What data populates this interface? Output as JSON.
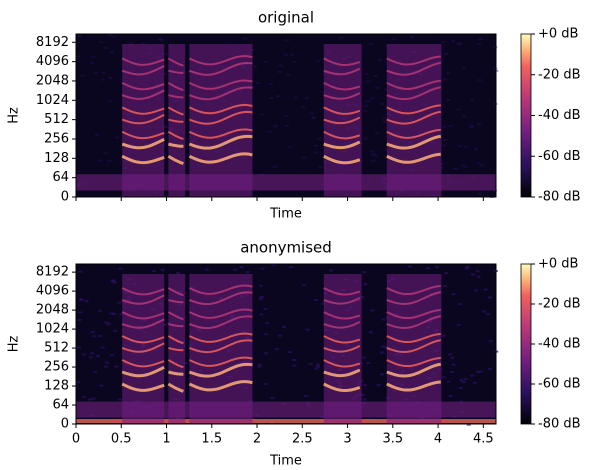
{
  "chart_data": [
    {
      "type": "heatmap",
      "title": "original",
      "xlabel": "Time",
      "ylabel": "Hz",
      "yscale": "symlog",
      "linthresh": 64,
      "xlim": [
        0,
        4.64
      ],
      "xticks": [
        0,
        0.5,
        1,
        1.5,
        2,
        2.5,
        3,
        3.5,
        4,
        4.5
      ],
      "xticklabels": false,
      "ylim": [
        0,
        11025
      ],
      "yticks": [
        0,
        64,
        128,
        256,
        512,
        1024,
        2048,
        4096,
        8192
      ],
      "clim": [
        -80,
        0
      ],
      "cticks": [
        {
          "value": 0,
          "label": "+0 dB"
        },
        {
          "value": -20,
          "label": "-20 dB"
        },
        {
          "value": -40,
          "label": "-40 dB"
        },
        {
          "value": -60,
          "label": "-60 dB"
        },
        {
          "value": -80,
          "label": "-80 dB"
        }
      ]
    },
    {
      "type": "heatmap",
      "title": "anonymised",
      "xlabel": "Time",
      "ylabel": "Hz",
      "yscale": "symlog",
      "linthresh": 64,
      "xlim": [
        0,
        4.64
      ],
      "xticks": [
        0,
        0.5,
        1,
        1.5,
        2,
        2.5,
        3,
        3.5,
        4,
        4.5
      ],
      "xticklabels": true,
      "ylim": [
        0,
        11025
      ],
      "yticks": [
        0,
        64,
        128,
        256,
        512,
        1024,
        2048,
        4096,
        8192
      ],
      "clim": [
        -80,
        0
      ],
      "cticks": [
        {
          "value": 0,
          "label": "+0 dB"
        },
        {
          "value": -20,
          "label": "-20 dB"
        },
        {
          "value": -40,
          "label": "-40 dB"
        },
        {
          "value": -60,
          "label": "-60 dB"
        },
        {
          "value": -80,
          "label": "-80 dB"
        }
      ]
    }
  ]
}
